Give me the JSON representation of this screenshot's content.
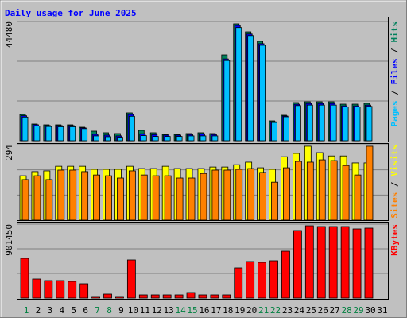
{
  "chart_data": [
    {
      "type": "bar",
      "title": "Daily usage for June 2025",
      "legend_separator": " / ",
      "ylim": [
        0,
        44480
      ],
      "yticks": [
        44480
      ],
      "ygrid": [
        14827,
        29653
      ],
      "grid": true,
      "series": [
        {
          "name": "Hits",
          "color": "#00805c",
          "values": [
            9780,
            6230,
            5930,
            5930,
            5930,
            5040,
            3560,
            2970,
            2670,
            10380,
            3850,
            2970,
            2370,
            2370,
            2670,
            2970,
            2670,
            32020,
            43590,
            40620,
            37070,
            7410,
            9490,
            14230,
            14530,
            14530,
            14530,
            13640,
            13640,
            13940,
            0
          ]
        },
        {
          "name": "Files",
          "color": "#0000ff",
          "values": [
            9300,
            5950,
            5650,
            5650,
            5650,
            4800,
            2400,
            2100,
            1800,
            9800,
            2600,
            2300,
            2100,
            2100,
            2300,
            2600,
            2300,
            30500,
            43000,
            39800,
            36200,
            7100,
            9200,
            13600,
            13900,
            13900,
            13900,
            13000,
            13000,
            13300,
            0
          ]
        },
        {
          "name": "Pages",
          "color": "#00c0ff",
          "values": [
            8800,
            5500,
            5300,
            5200,
            5200,
            4500,
            1800,
            1500,
            1300,
            9100,
            1900,
            1600,
            1600,
            1600,
            1800,
            1800,
            1800,
            29900,
            42200,
            39200,
            35600,
            6800,
            8900,
            13100,
            13300,
            13300,
            13300,
            12600,
            12600,
            12800,
            0
          ]
        }
      ]
    },
    {
      "type": "bar",
      "legend_separator": " / ",
      "ylim": [
        0,
        294
      ],
      "yticks": [
        294
      ],
      "ygrid": [
        98,
        196
      ],
      "grid": true,
      "series": [
        {
          "name": "Visits",
          "color": "#ffff00",
          "values": [
            173,
            189,
            192,
            210,
            210,
            210,
            198,
            198,
            198,
            210,
            201,
            201,
            210,
            201,
            201,
            201,
            207,
            207,
            216,
            226,
            204,
            198,
            247,
            260,
            288,
            263,
            250,
            250,
            223,
            223,
            0
          ]
        },
        {
          "name": "Sites",
          "color": "#ff8000",
          "values": [
            158,
            173,
            158,
            195,
            195,
            189,
            176,
            173,
            164,
            192,
            176,
            173,
            173,
            164,
            164,
            182,
            195,
            195,
            198,
            201,
            186,
            148,
            204,
            229,
            226,
            235,
            232,
            213,
            176,
            288,
            0
          ]
        }
      ]
    },
    {
      "type": "bar",
      "ylim": [
        0,
        901450
      ],
      "yticks": [
        901450
      ],
      "ygrid": [
        300483,
        600967
      ],
      "grid": true,
      "categories": [
        "1",
        "2",
        "3",
        "4",
        "5",
        "6",
        "7",
        "8",
        "9",
        "10",
        "11",
        "12",
        "13",
        "14",
        "15",
        "16",
        "17",
        "18",
        "19",
        "20",
        "21",
        "22",
        "23",
        "24",
        "25",
        "26",
        "27",
        "28",
        "29",
        "30",
        "31"
      ],
      "category_colors": [
        "#008040",
        "#000000",
        "#000000",
        "#000000",
        "#000000",
        "#000000",
        "#008040",
        "#008040",
        "#000000",
        "#000000",
        "#000000",
        "#000000",
        "#000000",
        "#008040",
        "#008040",
        "#000000",
        "#000000",
        "#000000",
        "#000000",
        "#000000",
        "#008040",
        "#008040",
        "#000000",
        "#000000",
        "#000000",
        "#000000",
        "#000000",
        "#008040",
        "#008040",
        "#000000",
        "#000000"
      ],
      "series": [
        {
          "name": "KBytes",
          "color": "#ff0000",
          "values": [
            484700,
            232600,
            213200,
            213200,
            203600,
            174500,
            19400,
            48500,
            19400,
            465300,
            38800,
            38800,
            38800,
            38800,
            67900,
            38800,
            38800,
            38800,
            368300,
            445900,
            436200,
            455600,
            571900,
            823900,
            882100,
            872400,
            872400,
            872400,
            843300,
            853000,
            0
          ]
        }
      ]
    }
  ]
}
